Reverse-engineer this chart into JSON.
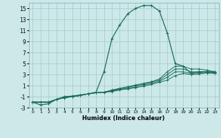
{
  "xlabel": "Humidex (Indice chaleur)",
  "bg_color": "#cce8e8",
  "grid_color": "#aacccc",
  "line_color": "#1a6b5a",
  "xlim": [
    -0.5,
    23.5
  ],
  "ylim": [
    -3,
    16
  ],
  "xticks": [
    0,
    1,
    2,
    3,
    4,
    5,
    6,
    7,
    8,
    9,
    10,
    11,
    12,
    13,
    14,
    15,
    16,
    17,
    18,
    19,
    20,
    21,
    22,
    23
  ],
  "yticks": [
    -3,
    -1,
    1,
    3,
    5,
    7,
    9,
    11,
    13,
    15
  ],
  "series": [
    {
      "x": [
        0,
        1,
        2,
        3,
        4,
        5,
        6,
        7,
        8,
        9,
        10,
        11,
        12,
        13,
        14,
        15,
        16,
        17,
        18,
        19,
        20,
        21,
        22,
        23
      ],
      "y": [
        -2,
        -2.5,
        -2.3,
        -1.5,
        -1.0,
        -0.9,
        -0.7,
        -0.5,
        -0.2,
        3.5,
        9.5,
        12.0,
        14.0,
        15.0,
        15.5,
        15.5,
        14.5,
        10.5,
        5.0,
        4.5,
        3.2,
        3.5,
        3.5,
        3.5
      ]
    },
    {
      "x": [
        0,
        1,
        2,
        3,
        4,
        5,
        6,
        7,
        8,
        9,
        10,
        11,
        12,
        13,
        14,
        15,
        16,
        17,
        18,
        19,
        20,
        21,
        22,
        23
      ],
      "y": [
        -2,
        -2,
        -2,
        -1.5,
        -1.2,
        -1.0,
        -0.8,
        -0.5,
        -0.3,
        -0.2,
        0.2,
        0.5,
        0.8,
        1.1,
        1.4,
        1.7,
        2.2,
        3.5,
        4.5,
        4.5,
        4.0,
        4.0,
        3.8,
        3.5
      ]
    },
    {
      "x": [
        0,
        1,
        2,
        3,
        4,
        5,
        6,
        7,
        8,
        9,
        10,
        11,
        12,
        13,
        14,
        15,
        16,
        17,
        18,
        19,
        20,
        21,
        22,
        23
      ],
      "y": [
        -2,
        -2,
        -2,
        -1.5,
        -1.2,
        -1.0,
        -0.8,
        -0.5,
        -0.3,
        -0.2,
        0.1,
        0.4,
        0.7,
        1.0,
        1.3,
        1.6,
        2.0,
        3.0,
        4.0,
        4.0,
        3.5,
        3.5,
        3.5,
        3.4
      ]
    },
    {
      "x": [
        0,
        1,
        2,
        3,
        4,
        5,
        6,
        7,
        8,
        9,
        10,
        11,
        12,
        13,
        14,
        15,
        16,
        17,
        18,
        19,
        20,
        21,
        22,
        23
      ],
      "y": [
        -2,
        -2,
        -2,
        -1.5,
        -1.2,
        -1.0,
        -0.8,
        -0.5,
        -0.3,
        -0.2,
        0.0,
        0.3,
        0.5,
        0.8,
        1.1,
        1.4,
        1.8,
        2.5,
        3.5,
        3.5,
        3.2,
        3.3,
        3.4,
        3.3
      ]
    },
    {
      "x": [
        0,
        1,
        2,
        3,
        4,
        5,
        6,
        7,
        8,
        9,
        10,
        11,
        12,
        13,
        14,
        15,
        16,
        17,
        18,
        19,
        20,
        21,
        22,
        23
      ],
      "y": [
        -2,
        -2,
        -2,
        -1.5,
        -1.2,
        -1.0,
        -0.8,
        -0.5,
        -0.3,
        -0.2,
        -0.1,
        0.2,
        0.4,
        0.6,
        0.9,
        1.2,
        1.6,
        2.0,
        2.8,
        3.2,
        3.0,
        3.1,
        3.3,
        3.2
      ]
    }
  ]
}
